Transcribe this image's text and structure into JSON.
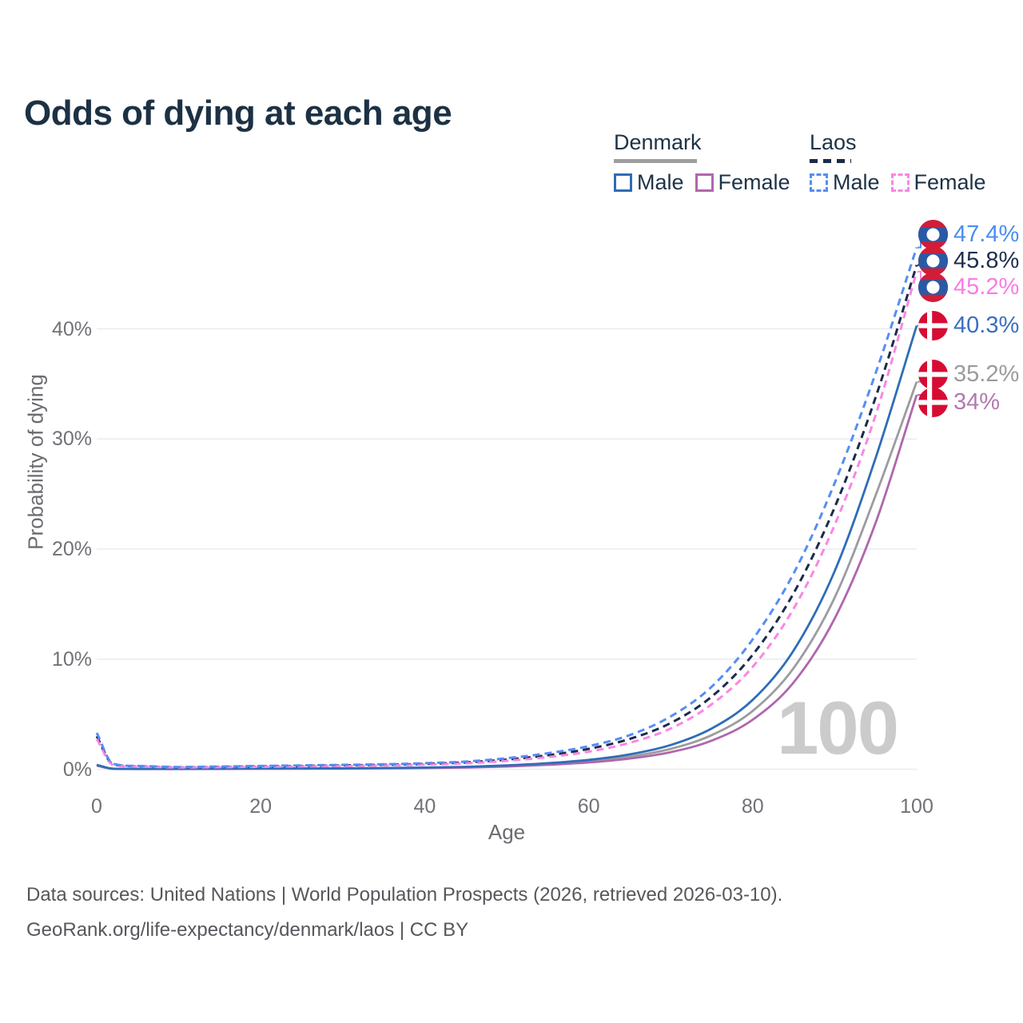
{
  "title": "Odds of dying at each age",
  "legend": {
    "groups": [
      {
        "country": "Denmark",
        "line_style": "solid",
        "underline_color": "#9e9e9e",
        "items": [
          {
            "label": "Male",
            "color": "#2f6db7"
          },
          {
            "label": "Female",
            "color": "#af67ad"
          }
        ]
      },
      {
        "country": "Laos",
        "line_style": "dashed",
        "underline_color": "#1b2b4a",
        "items": [
          {
            "label": "Male",
            "color": "#568df2"
          },
          {
            "label": "Female",
            "color": "#fa86e4"
          }
        ]
      }
    ]
  },
  "watermark": "100",
  "footer": {
    "line1": "Data sources: United Nations | World Population Prospects (2026, retrieved 2026-03-10).",
    "line2": "GeoRank.org/life-expectancy/denmark/laos | CC BY"
  },
  "chart_data": {
    "type": "line",
    "title": "Odds of dying at each age",
    "xlabel": "Age",
    "ylabel": "Probability of dying",
    "x_ticks": [
      0,
      20,
      40,
      60,
      80,
      100
    ],
    "y_ticks_percent": [
      0,
      10,
      20,
      30,
      40
    ],
    "xlim": [
      0,
      100
    ],
    "ylim_percent": [
      0,
      48
    ],
    "grid": "horizontal",
    "legend_position": "top-right",
    "ages": [
      0,
      2,
      5,
      10,
      15,
      20,
      25,
      30,
      35,
      40,
      45,
      50,
      55,
      60,
      65,
      70,
      75,
      80,
      85,
      90,
      95,
      100
    ],
    "series": [
      {
        "name": "Denmark — Both sexes",
        "id": "denmark-both",
        "country": "Denmark",
        "sex": "Both sexes",
        "color": "#9c9ca0",
        "dash": false,
        "flag": "denmark",
        "end_label": "35.2%",
        "label_color": "#9b9b9d",
        "values": [
          0.37,
          0.04,
          0.03,
          0.03,
          0.04,
          0.06,
          0.07,
          0.08,
          0.1,
          0.13,
          0.19,
          0.3,
          0.47,
          0.73,
          1.15,
          1.85,
          3.1,
          5.3,
          9.2,
          15.6,
          24.9,
          35.2
        ]
      },
      {
        "name": "Denmark — Female",
        "id": "denmark-female",
        "country": "Denmark",
        "sex": "Female",
        "color": "#af67ad",
        "dash": false,
        "flag": "denmark",
        "end_label": "34%",
        "label_color": "#b279af",
        "values": [
          0.33,
          0.04,
          0.02,
          0.02,
          0.03,
          0.04,
          0.05,
          0.06,
          0.08,
          0.11,
          0.16,
          0.25,
          0.4,
          0.62,
          0.97,
          1.55,
          2.6,
          4.5,
          7.9,
          13.7,
          22.4,
          34.0
        ]
      },
      {
        "name": "Denmark — Male",
        "id": "denmark-male",
        "country": "Denmark",
        "sex": "Male",
        "color": "#2f6db7",
        "dash": false,
        "flag": "denmark",
        "end_label": "40.3%",
        "label_color": "#3a6fc0",
        "values": [
          0.4,
          0.05,
          0.03,
          0.03,
          0.05,
          0.07,
          0.08,
          0.09,
          0.11,
          0.15,
          0.22,
          0.35,
          0.55,
          0.85,
          1.35,
          2.2,
          3.7,
          6.3,
          10.8,
          18.0,
          28.3,
          40.3
        ]
      },
      {
        "name": "Laos — Both sexes",
        "id": "laos-both",
        "country": "Laos",
        "sex": "Both sexes",
        "color": "#1b2b4a",
        "dash": true,
        "flag": "laos",
        "end_label": "45.8%",
        "label_color": "#1e2f4f",
        "values": [
          3.0,
          0.45,
          0.27,
          0.18,
          0.22,
          0.26,
          0.3,
          0.35,
          0.4,
          0.48,
          0.62,
          0.88,
          1.27,
          1.85,
          2.75,
          4.2,
          6.6,
          10.4,
          16.0,
          23.8,
          33.8,
          45.8
        ]
      },
      {
        "name": "Laos — Female",
        "id": "laos-female",
        "country": "Laos",
        "sex": "Female",
        "color": "#fa86e4",
        "dash": true,
        "flag": "laos",
        "end_label": "45.2%",
        "label_color": "#fa7ce4",
        "values": [
          2.75,
          0.4,
          0.25,
          0.16,
          0.19,
          0.22,
          0.26,
          0.3,
          0.35,
          0.42,
          0.54,
          0.76,
          1.1,
          1.6,
          2.4,
          3.7,
          5.9,
          9.3,
          14.6,
          22.2,
          32.2,
          45.2
        ]
      },
      {
        "name": "Laos — Male",
        "id": "laos-male",
        "country": "Laos",
        "sex": "Male",
        "color": "#568df2",
        "dash": true,
        "flag": "laos",
        "end_label": "47.4%",
        "label_color": "#4a8df2",
        "values": [
          3.3,
          0.5,
          0.3,
          0.2,
          0.25,
          0.3,
          0.35,
          0.4,
          0.45,
          0.55,
          0.7,
          1.0,
          1.45,
          2.1,
          3.1,
          4.8,
          7.5,
          11.8,
          17.8,
          26.0,
          36.0,
          47.4
        ]
      }
    ],
    "flag_colors": {
      "laos_red": "#d21c38",
      "laos_blue": "#2a5aa5",
      "denmark_red": "#d60c33",
      "white": "#ffffff"
    }
  }
}
